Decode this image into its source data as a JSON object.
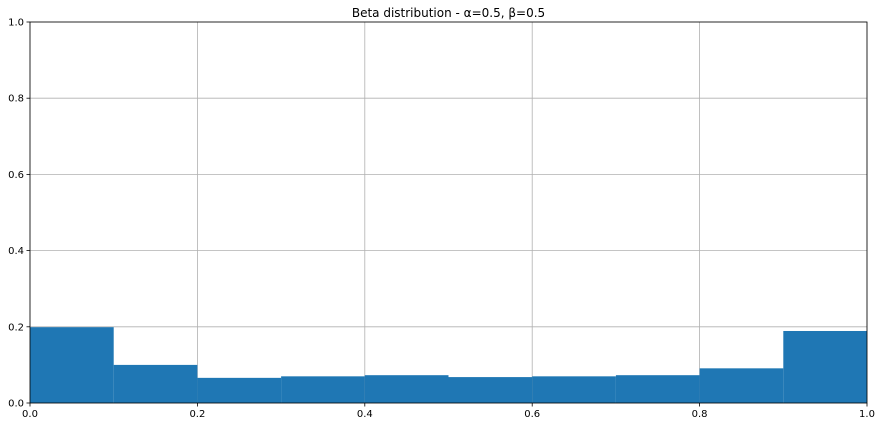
{
  "chart_data": {
    "type": "bar",
    "title": "Beta distribution - α=0.5, β=0.5",
    "xlabel": "",
    "ylabel": "",
    "xlim": [
      0,
      1
    ],
    "ylim": [
      0,
      1
    ],
    "x_ticks": [
      "0.0",
      "0.2",
      "0.4",
      "0.6",
      "0.8",
      "1.0"
    ],
    "y_ticks": [
      "0.0",
      "0.2",
      "0.4",
      "0.6",
      "0.8",
      "1.0"
    ],
    "grid": true,
    "bin_edges": [
      0.0,
      0.1,
      0.2,
      0.3,
      0.4,
      0.5,
      0.6,
      0.7,
      0.8,
      0.9,
      1.0
    ],
    "values": [
      0.199,
      0.1,
      0.066,
      0.07,
      0.073,
      0.068,
      0.07,
      0.073,
      0.091,
      0.189
    ],
    "bar_color": "#1f77b4"
  }
}
